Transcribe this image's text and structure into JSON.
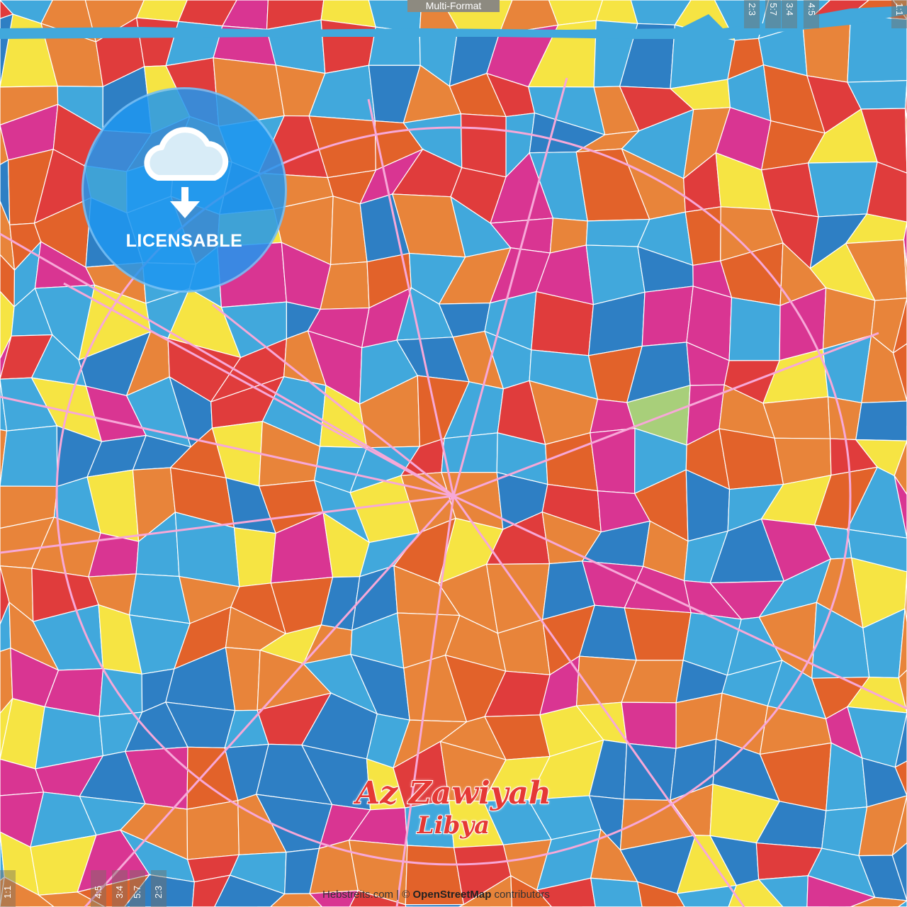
{
  "header": {
    "format_label": "Multi-Format"
  },
  "map": {
    "city": "Az Zawiyah",
    "country": "Libya",
    "colors": {
      "sea": "#41a8dc",
      "land_background": "#fdf8d7",
      "roads": "#ffffff",
      "major_roads": "#f7a8d8"
    },
    "palette": [
      "#41a8dc",
      "#2e7fc4",
      "#e8843a",
      "#e2622a",
      "#e03c3c",
      "#d93592",
      "#f6e443",
      "#41a8dc",
      "#e8843a"
    ],
    "park_color": "#a8cf7a"
  },
  "badge": {
    "label": "LICENSABLE",
    "icon": "cloud-download-icon"
  },
  "ratio_guides": {
    "top": [
      "2:3",
      "5:7",
      "3:4",
      "4:5",
      "1:1"
    ],
    "bottom": [
      "1:1",
      "4:5",
      "3:4",
      "5:7",
      "2:3"
    ]
  },
  "attribution": {
    "site": "Hebstreits.com",
    "separator": "|",
    "copyright": "©",
    "osm": "OpenStreetMap",
    "suffix": "contributors"
  }
}
